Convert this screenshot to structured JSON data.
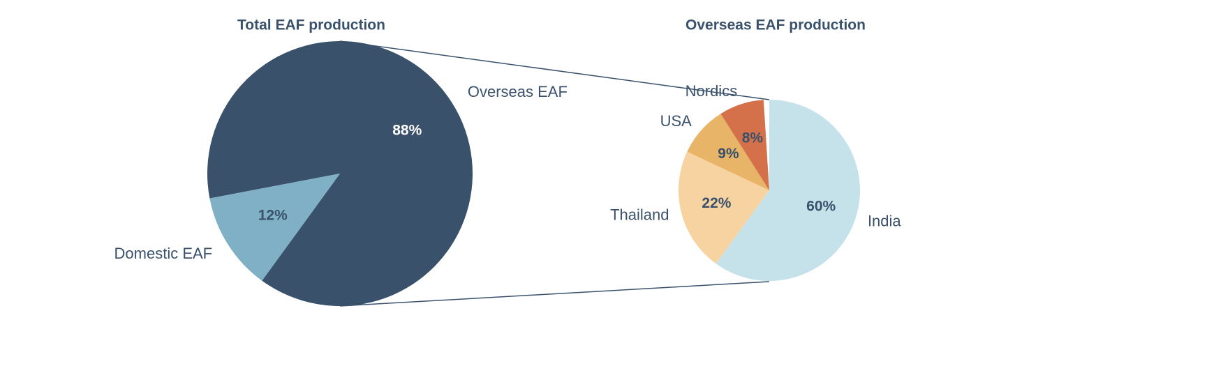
{
  "chart_data": [
    {
      "type": "pie",
      "title": "Total EAF production",
      "categories": [
        "Overseas EAF",
        "Domestic EAF"
      ],
      "values": [
        88,
        12
      ],
      "value_labels": [
        "88%",
        "12%"
      ],
      "colors": [
        "#3a516b",
        "#7fb0c6"
      ]
    },
    {
      "type": "pie",
      "title": "Overseas EAF production",
      "categories": [
        "India",
        "Thailand",
        "USA",
        "Nordics"
      ],
      "values": [
        60,
        22,
        9,
        8
      ],
      "value_labels": [
        "60%",
        "22%",
        "9%",
        "8%"
      ],
      "colors": [
        "#c5e2ea",
        "#f6d3a0",
        "#e8b467",
        "#d4714a"
      ]
    }
  ]
}
